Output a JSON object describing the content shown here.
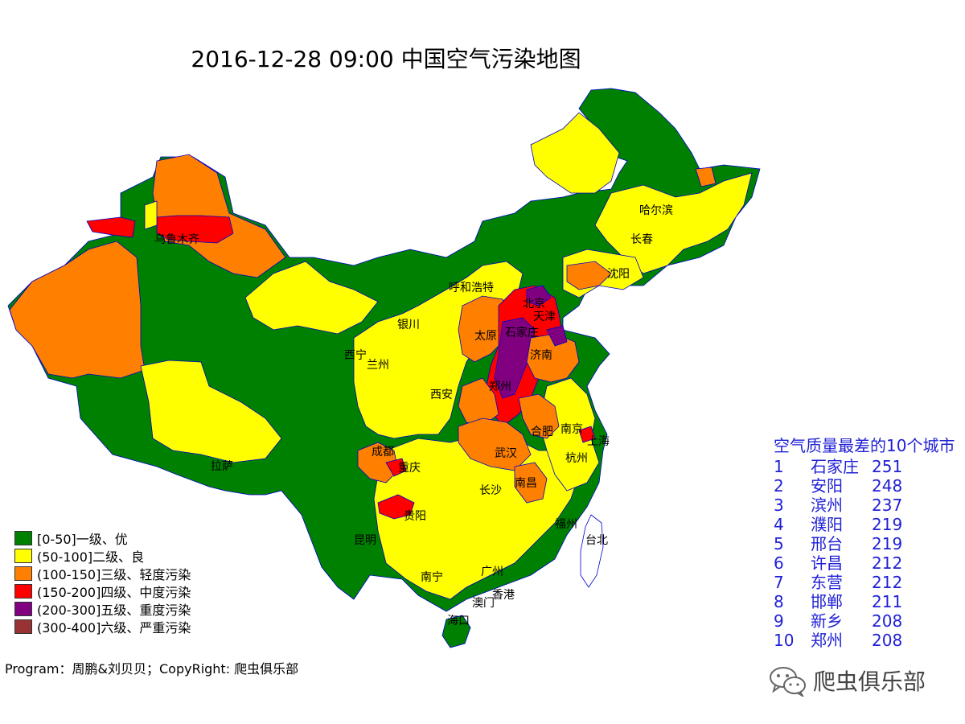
{
  "title": "2016-12-28 09:00 中国空气污染地图",
  "colors": {
    "level1": "#008000",
    "level2": "#ffff00",
    "level3": "#ff8000",
    "level4": "#ff0000",
    "level5": "#800080",
    "level6": "#993333",
    "border": "#0000cc",
    "ranking_text": "#1f1fd6"
  },
  "legend": [
    {
      "label": "[0-50]一级、优",
      "color": "#008000"
    },
    {
      "label": "(50-100]二级、良",
      "color": "#ffff00"
    },
    {
      "label": "(100-150]三级、轻度污染",
      "color": "#ff8000"
    },
    {
      "label": "(150-200]四级、中度污染",
      "color": "#ff0000"
    },
    {
      "label": "(200-300]五级、重度污染",
      "color": "#800080"
    },
    {
      "label": "(300-400]六级、严重污染",
      "color": "#993333"
    }
  ],
  "cities": [
    "乌鲁木齐",
    "哈尔滨",
    "长春",
    "沈阳",
    "呼和浩特",
    "北京",
    "天津",
    "银川",
    "太原",
    "石家庄",
    "西宁",
    "兰州",
    "济南",
    "西安",
    "郑州",
    "合肥",
    "南京",
    "上海",
    "拉萨",
    "成都",
    "重庆",
    "武汉",
    "杭州",
    "长沙",
    "南昌",
    "贵阳",
    "福州",
    "昆明",
    "台北",
    "南宁",
    "广州",
    "香港",
    "澳门",
    "海口"
  ],
  "ranking": {
    "title": "空气质量最差的10个城市",
    "rows": [
      {
        "rank": "1",
        "city": "石家庄",
        "value": "251"
      },
      {
        "rank": "2",
        "city": "安阳",
        "value": "248"
      },
      {
        "rank": "3",
        "city": "滨州",
        "value": "237"
      },
      {
        "rank": "4",
        "city": "濮阳",
        "value": "219"
      },
      {
        "rank": "5",
        "city": "邢台",
        "value": "219"
      },
      {
        "rank": "6",
        "city": "许昌",
        "value": "212"
      },
      {
        "rank": "7",
        "city": "东营",
        "value": "212"
      },
      {
        "rank": "8",
        "city": "邯郸",
        "value": "211"
      },
      {
        "rank": "9",
        "city": "新乡",
        "value": "208"
      },
      {
        "rank": "10",
        "city": "郑州",
        "value": "208"
      }
    ]
  },
  "credit": "Program：周鹏&刘贝贝；CopyRight: 爬虫俱乐部",
  "watermark": {
    "text": "爬虫俱乐部",
    "icon": "wechat-icon"
  }
}
